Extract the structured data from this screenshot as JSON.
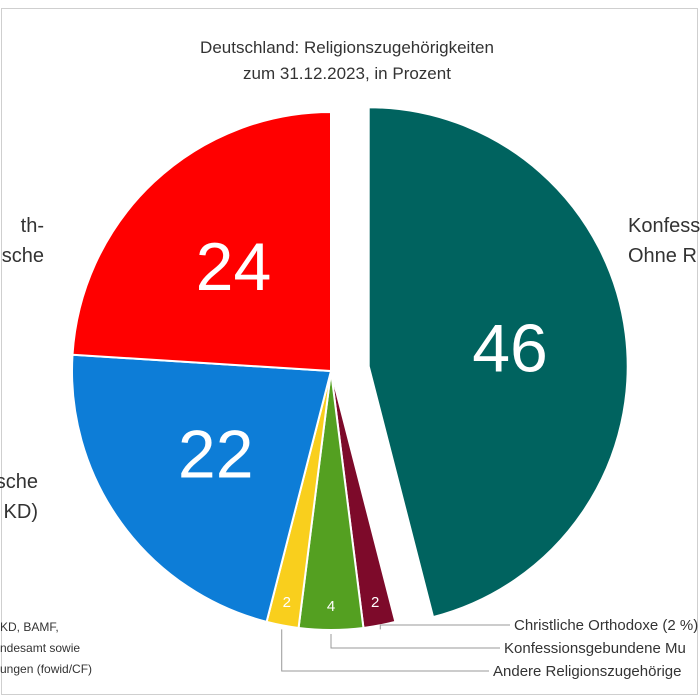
{
  "chart_data": {
    "type": "pie",
    "title": "Deutschland: Religionszugehörigkeiten",
    "subtitle": "zum 31.12.2023, in Prozent",
    "slices": [
      {
        "label": "Konfessionsfreie / Ohne Religionszugehörigkeit",
        "label_visible": [
          "Konfess",
          "Ohne R"
        ],
        "value": 46,
        "value_label": "46",
        "color": "#00635f",
        "exploded": true
      },
      {
        "label": "Christliche Orthodoxe",
        "label_visible": "Christliche Orthodoxe (2 %)",
        "value": 2,
        "value_label": "2",
        "color": "#7d0a2a"
      },
      {
        "label": "Konfessionsgebundene Muslime",
        "label_visible": "Konfessionsgebundene Mu",
        "value": 4,
        "value_label": "4",
        "color": "#54a021"
      },
      {
        "label": "Andere Religionszugehörige",
        "label_visible": "Andere Religionszugehörige",
        "value": 2,
        "value_label": "2",
        "color": "#f9cf1d"
      },
      {
        "label": "Katholische Kirche (DBK)",
        "label_visible": [
          "sche",
          "KD)"
        ],
        "value": 22,
        "value_label": "22",
        "color": "#0d7dd7"
      },
      {
        "label": "Evangelische Kirche (EKD)",
        "label_visible": [
          "th-",
          "sche"
        ],
        "value": 24,
        "value_label": "24",
        "color": "#ff0000"
      }
    ],
    "source_lines": [
      "KD, BAMF,",
      "ndesamt sowie",
      "ungen (fowid/CF)"
    ],
    "legend": "none"
  }
}
